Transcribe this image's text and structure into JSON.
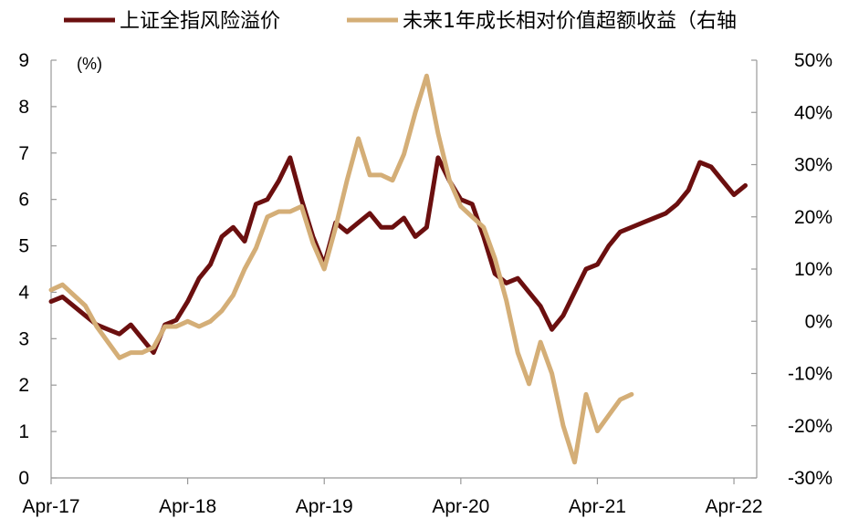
{
  "chart_data": {
    "type": "line",
    "title": "",
    "unit_label": "(%)",
    "legend_position": "top",
    "grid": false,
    "x_axis": {
      "tick_labels": [
        "Apr-17",
        "Apr-18",
        "Apr-19",
        "Apr-20",
        "Apr-21",
        "Apr-22"
      ],
      "range": [
        "2017-04",
        "2022-06"
      ]
    },
    "y_left": {
      "min": 0,
      "max": 9,
      "ticks": [
        0,
        1,
        2,
        3,
        4,
        5,
        6,
        7,
        8,
        9
      ]
    },
    "y_right": {
      "min": -30,
      "max": 50,
      "tick_labels": [
        "-30%",
        "-20%",
        "-10%",
        "0%",
        "10%",
        "20%",
        "30%",
        "40%",
        "50%"
      ],
      "ticks": [
        -30,
        -20,
        -10,
        0,
        10,
        20,
        30,
        40,
        50
      ]
    },
    "series": [
      {
        "name": "上证全指风险溢价",
        "axis": "left",
        "color": "#6b0f0f",
        "points": [
          [
            "2017-04",
            3.8
          ],
          [
            "2017-05",
            3.9
          ],
          [
            "2017-06",
            3.7
          ],
          [
            "2017-07",
            3.5
          ],
          [
            "2017-08",
            3.3
          ],
          [
            "2017-09",
            3.2
          ],
          [
            "2017-10",
            3.1
          ],
          [
            "2017-11",
            3.3
          ],
          [
            "2017-12",
            3.0
          ],
          [
            "2018-01",
            2.7
          ],
          [
            "2018-02",
            3.3
          ],
          [
            "2018-03",
            3.4
          ],
          [
            "2018-04",
            3.8
          ],
          [
            "2018-05",
            4.3
          ],
          [
            "2018-06",
            4.6
          ],
          [
            "2018-07",
            5.2
          ],
          [
            "2018-08",
            5.4
          ],
          [
            "2018-09",
            5.1
          ],
          [
            "2018-10",
            5.9
          ],
          [
            "2018-11",
            6.0
          ],
          [
            "2018-12",
            6.4
          ],
          [
            "2019-01",
            6.9
          ],
          [
            "2019-02",
            6.0
          ],
          [
            "2019-03",
            5.2
          ],
          [
            "2019-04",
            4.6
          ],
          [
            "2019-05",
            5.5
          ],
          [
            "2019-06",
            5.3
          ],
          [
            "2019-07",
            5.5
          ],
          [
            "2019-08",
            5.7
          ],
          [
            "2019-09",
            5.4
          ],
          [
            "2019-10",
            5.4
          ],
          [
            "2019-11",
            5.6
          ],
          [
            "2019-12",
            5.2
          ],
          [
            "2020-01",
            5.4
          ],
          [
            "2020-02",
            6.9
          ],
          [
            "2020-03",
            6.4
          ],
          [
            "2020-04",
            6.0
          ],
          [
            "2020-05",
            5.9
          ],
          [
            "2020-06",
            5.2
          ],
          [
            "2020-07",
            4.4
          ],
          [
            "2020-08",
            4.2
          ],
          [
            "2020-09",
            4.3
          ],
          [
            "2020-10",
            4.0
          ],
          [
            "2020-11",
            3.7
          ],
          [
            "2020-12",
            3.2
          ],
          [
            "2021-01",
            3.5
          ],
          [
            "2021-02",
            4.0
          ],
          [
            "2021-03",
            4.5
          ],
          [
            "2021-04",
            4.6
          ],
          [
            "2021-05",
            5.0
          ],
          [
            "2021-06",
            5.3
          ],
          [
            "2021-07",
            5.4
          ],
          [
            "2021-08",
            5.5
          ],
          [
            "2021-09",
            5.6
          ],
          [
            "2021-10",
            5.7
          ],
          [
            "2021-11",
            5.9
          ],
          [
            "2021-12",
            6.2
          ],
          [
            "2022-01",
            6.8
          ],
          [
            "2022-02",
            6.7
          ],
          [
            "2022-03",
            6.4
          ],
          [
            "2022-04",
            6.1
          ],
          [
            "2022-05",
            6.3
          ]
        ]
      },
      {
        "name": "未来1年成长相对价值超额收益（右轴",
        "axis": "right",
        "color": "#d4ae77",
        "points": [
          [
            "2017-04",
            6
          ],
          [
            "2017-05",
            7
          ],
          [
            "2017-06",
            5
          ],
          [
            "2017-07",
            3
          ],
          [
            "2017-08",
            -1
          ],
          [
            "2017-09",
            -4
          ],
          [
            "2017-10",
            -7
          ],
          [
            "2017-11",
            -6
          ],
          [
            "2017-12",
            -6
          ],
          [
            "2018-01",
            -5
          ],
          [
            "2018-02",
            -1
          ],
          [
            "2018-03",
            -1
          ],
          [
            "2018-04",
            0
          ],
          [
            "2018-05",
            -1
          ],
          [
            "2018-06",
            0
          ],
          [
            "2018-07",
            2
          ],
          [
            "2018-08",
            5
          ],
          [
            "2018-09",
            10
          ],
          [
            "2018-10",
            14
          ],
          [
            "2018-11",
            20
          ],
          [
            "2018-12",
            21
          ],
          [
            "2019-01",
            21
          ],
          [
            "2019-02",
            22
          ],
          [
            "2019-03",
            15
          ],
          [
            "2019-04",
            10
          ],
          [
            "2019-05",
            18
          ],
          [
            "2019-06",
            27
          ],
          [
            "2019-07",
            35
          ],
          [
            "2019-08",
            28
          ],
          [
            "2019-09",
            28
          ],
          [
            "2019-10",
            27
          ],
          [
            "2019-11",
            32
          ],
          [
            "2019-12",
            40
          ],
          [
            "2020-01",
            47
          ],
          [
            "2020-02",
            36
          ],
          [
            "2020-03",
            27
          ],
          [
            "2020-04",
            22
          ],
          [
            "2020-05",
            20
          ],
          [
            "2020-06",
            18
          ],
          [
            "2020-07",
            12
          ],
          [
            "2020-08",
            4
          ],
          [
            "2020-09",
            -6
          ],
          [
            "2020-10",
            -12
          ],
          [
            "2020-11",
            -4
          ],
          [
            "2020-12",
            -10
          ],
          [
            "2021-01",
            -20
          ],
          [
            "2021-02",
            -27
          ],
          [
            "2021-03",
            -14
          ],
          [
            "2021-04",
            -21
          ],
          [
            "2021-05",
            -18
          ],
          [
            "2021-06",
            -15
          ],
          [
            "2021-07",
            -14
          ]
        ]
      }
    ]
  }
}
